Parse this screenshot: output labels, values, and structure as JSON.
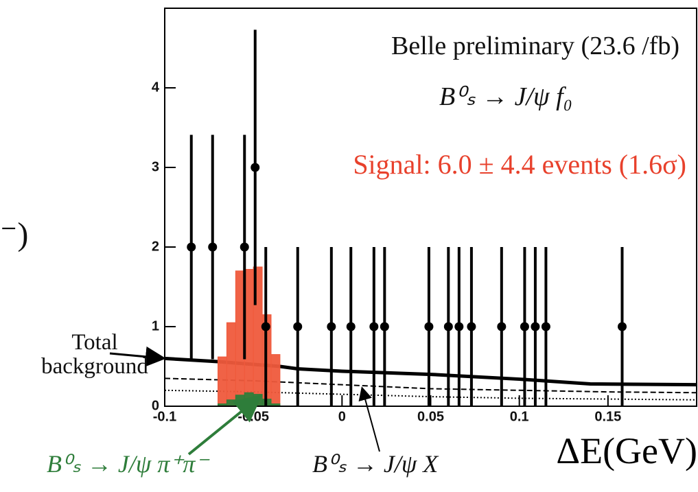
{
  "chart_data": {
    "type": "scatter",
    "xlabel": "ΔE(GeV)",
    "xlim": [
      -0.1,
      0.2
    ],
    "ylim": [
      0,
      5
    ],
    "xticks": [
      -0.1,
      -0.05,
      0,
      0.05,
      0.1,
      0.15
    ],
    "yticks": [
      0,
      1,
      2,
      3,
      4
    ],
    "annotations": [
      {
        "text": "Belle preliminary (23.6 /fb)",
        "color": "#111111"
      },
      {
        "text": "B⁰ₛ → J/ψ f₀",
        "color": "#111111"
      },
      {
        "text": "Signal: 6.0 ± 4.4 events (1.6σ)",
        "color": "#e8412c"
      },
      {
        "text": "⁻)",
        "color": "#111111"
      }
    ],
    "series": [
      {
        "type": "line",
        "name": "Total background",
        "color": "#000000",
        "width": 5,
        "x": [
          -0.1,
          -0.07,
          -0.035,
          -0.025,
          0,
          0.05,
          0.1,
          0.14,
          0.2
        ],
        "values": [
          0.6,
          0.56,
          0.5,
          0.47,
          0.44,
          0.4,
          0.34,
          0.28,
          0.27
        ]
      },
      {
        "type": "line",
        "name": "B⁰ₛ → J/ψ X",
        "color": "#000000",
        "width": 2,
        "dash": "8 4",
        "x": [
          -0.1,
          -0.05,
          0,
          0.05,
          0.1,
          0.15,
          0.2
        ],
        "values": [
          0.35,
          0.32,
          0.27,
          0.22,
          0.2,
          0.18,
          0.17
        ]
      },
      {
        "type": "line",
        "color": "#000000",
        "width": 2,
        "dash": "2 3",
        "x": [
          -0.1,
          -0.05,
          0,
          0.05,
          0.1,
          0.15,
          0.2
        ],
        "values": [
          0.2,
          0.18,
          0.15,
          0.12,
          0.1,
          0.09,
          0.08
        ]
      },
      {
        "type": "histogram",
        "color": "#ef5a3c",
        "bins": [
          -0.07,
          -0.065,
          -0.06,
          -0.055,
          -0.05,
          -0.045,
          -0.04,
          -0.035
        ],
        "values": [
          0.62,
          1.05,
          1.7,
          1.72,
          1.75,
          1.15,
          0.65
        ]
      },
      {
        "type": "histogram",
        "name": "B⁰ₛ → J/ψ π⁺π⁻",
        "color": "#2e7d3a",
        "bins": [
          -0.07,
          -0.065,
          -0.06,
          -0.055,
          -0.05,
          -0.045,
          -0.04,
          -0.035
        ],
        "values": [
          0.03,
          0.08,
          0.14,
          0.17,
          0.15,
          0.09,
          0.03
        ]
      },
      {
        "type": "scatter",
        "color": "#000000",
        "x": [
          -0.085,
          -0.073,
          -0.055,
          -0.049,
          -0.043,
          -0.025,
          -0.006,
          0.005,
          0.018,
          0.024,
          0.049,
          0.06,
          0.066,
          0.073,
          0.09,
          0.103,
          0.109,
          0.115,
          0.158
        ],
        "values": [
          2,
          2,
          2,
          3,
          1,
          1,
          1,
          1,
          1,
          1,
          1,
          1,
          1,
          1,
          1,
          1,
          1,
          1,
          1
        ],
        "errors": [
          1.41,
          1.41,
          1.41,
          1.73,
          1,
          1,
          1,
          1,
          1,
          1,
          1,
          1,
          1,
          1,
          1,
          1,
          1,
          1,
          1
        ]
      }
    ]
  }
}
